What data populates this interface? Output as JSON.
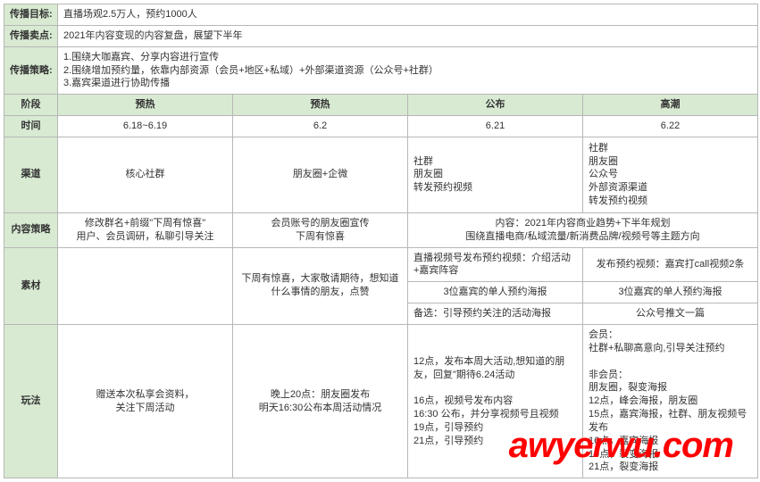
{
  "header_rows": [
    {
      "label": "传播目标:",
      "value": "直播场观2.5万人，预约1000人"
    },
    {
      "label": "传播卖点:",
      "value": "2021年内容变现的内容复盘，展望下半年"
    },
    {
      "label": "传播策略:",
      "value": "1.围绕大咖嘉宾、分享内容进行宣传\n2.围绕增加预约量，依靠内部资源（会员+地区+私域）+外部渠道资源（公众号+社群）\n3.嘉宾渠道进行协助传播"
    }
  ],
  "stage_label": "阶段",
  "stage_cols": [
    "预热",
    "预热",
    "公布",
    "高潮"
  ],
  "time_label": "时间",
  "time_cols": [
    "6.18~6.19",
    "6.2",
    "6.21",
    "6.22"
  ],
  "channel_label": "渠道",
  "channel_cols": [
    "核心社群",
    "朋友圈+企微",
    "社群\n朋友圈\n转发预约视频",
    "社群\n朋友圈\n公众号\n外部资源渠道\n转发预约视频"
  ],
  "content_label": "内容策略",
  "content": {
    "c1": "修改群名+前缀\"下周有惊喜\"\n用户、会员调研，私聊引导关注",
    "c2": "会员账号的朋友圈宣传\n下周有惊喜",
    "c34": "内容：2021年内容商业趋势+下半年规划\n围绕直播电商/私域流量/新消费品牌/视频号等主题方向"
  },
  "material_label": "素材",
  "material": {
    "r1c2": "下周有惊喜，大家敬请期待，想知道什么事情的朋友，点赞",
    "r1c3": "直播视频号发布预约视频：介绍活动+嘉宾阵容",
    "r1c4": "发布预约视频：嘉宾打call视频2条",
    "r2c3": "3位嘉宾的单人预约海报",
    "r2c4": "3位嘉宾的单人预约海报",
    "r3c3": "备选：引导预约关注的活动海报",
    "r3c4": "公众号推文一篇"
  },
  "play_label": "玩法",
  "play_cols": [
    "赠送本次私享会资料，\n关注下周活动",
    "晚上20点：朋友圈发布\n明天16:30公布本周活动情况",
    "12点，发布本周大活动,想知道的朋友，回复\"期待6.24活动\n\n16点，视频号发布内容\n16:30 公布，并分享视频号且视频\n19点，引导预约\n21点，引导预约",
    "会员：\n社群+私聊高意向,引导关注预约\n\n非会员：\n朋友圈，裂变海报\n12点，峰会海报，朋友圈\n15点，嘉宾海报，社群、朋友视频号发布\n16点，嘉宾海报\n19点，裂变海报\n21点，裂变海报"
  ],
  "watermark": "awyerwu.com",
  "colors": {
    "header_bg": "#d8ead2",
    "border": "#b7b7b7",
    "text": "#333333",
    "watermark": "#ff0000",
    "background": "#ffffff"
  },
  "typography": {
    "base_fontsize": 11,
    "header_fontweight": "bold",
    "font_family": "Microsoft YaHei"
  }
}
